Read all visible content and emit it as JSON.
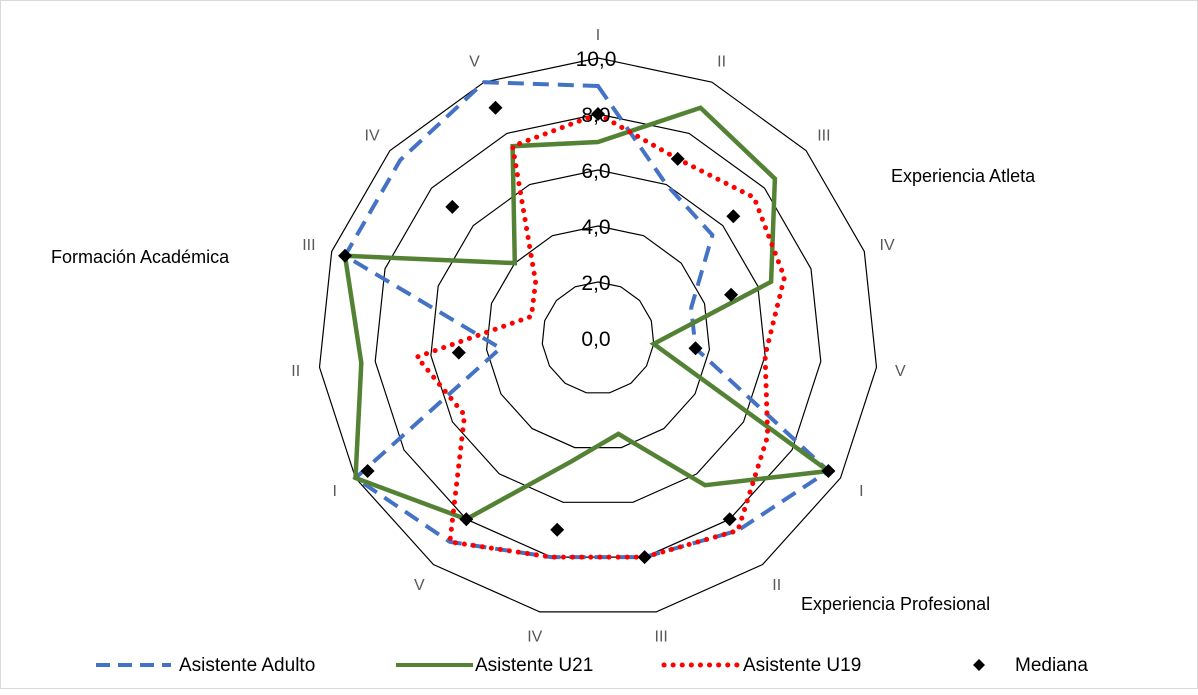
{
  "chart_data": {
    "type": "radar",
    "title": "",
    "axes": [
      "I",
      "II",
      "III",
      "IV",
      "V",
      "I",
      "II",
      "III",
      "IV",
      "V",
      "I",
      "II",
      "III",
      "IV",
      "V"
    ],
    "groups": [
      "Experiencia Atleta",
      "Experiencia Profesional",
      "Formación Académica"
    ],
    "r_ticks": [
      "0,0",
      "2,0",
      "4,0",
      "6,0",
      "8,0",
      "10,0"
    ],
    "r_range": [
      0,
      10
    ],
    "grid": true,
    "legend_position": "bottom",
    "series": [
      {
        "name": "Asistente Adulto",
        "color": "#4472c4",
        "style": "dashed",
        "values": [
          9.0,
          6.0,
          5.5,
          3.5,
          3.5,
          9.5,
          8.5,
          8.0,
          8.0,
          9.0,
          10.0,
          3.5,
          9.5,
          9.5,
          10.0
        ]
      },
      {
        "name": "Asistente U21",
        "color": "#548235",
        "style": "solid",
        "values": [
          7.0,
          9.0,
          8.5,
          6.5,
          2.0,
          9.5,
          6.5,
          3.5,
          4.5,
          8.0,
          10.0,
          8.5,
          9.5,
          4.0,
          7.5
        ]
      },
      {
        "name": "Asistente U19",
        "color": "#ff0000",
        "style": "dotted",
        "values": [
          8.0,
          7.0,
          7.5,
          7.0,
          6.0,
          7.0,
          8.5,
          8.0,
          8.0,
          9.0,
          5.5,
          6.5,
          2.5,
          3.0,
          7.5
        ]
      },
      {
        "name": "Mediana",
        "color": "#000000",
        "style": "marker",
        "values": [
          8.0,
          7.0,
          6.5,
          5.0,
          3.5,
          9.5,
          8.0,
          8.0,
          7.0,
          8.0,
          9.5,
          5.0,
          9.5,
          7.0,
          9.0
        ]
      }
    ]
  }
}
